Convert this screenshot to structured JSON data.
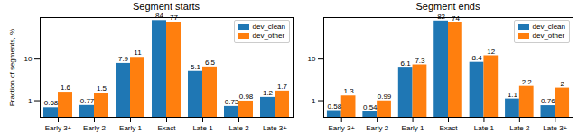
{
  "chart_data": [
    {
      "type": "bar",
      "title": "Segment starts",
      "ylabel": "Fraction of segments, %",
      "categories": [
        "Early 3+",
        "Early 2",
        "Early 1",
        "Exact",
        "Late 1",
        "Late 2",
        "Late 3+"
      ],
      "series": [
        {
          "name": "dev_clean",
          "color": "#1f77b4",
          "values": [
            0.68,
            0.77,
            7.9,
            84,
            5.1,
            0.73,
            1.2
          ]
        },
        {
          "name": "dev_other",
          "color": "#ff7f0e",
          "values": [
            1.6,
            1.5,
            11,
            77,
            6.5,
            0.98,
            1.7
          ]
        }
      ],
      "log": "y",
      "ylim": [
        0.4,
        99
      ],
      "yticks": [
        1,
        10
      ],
      "grid": false,
      "legend": "upper right",
      "data_labels": true
    },
    {
      "type": "bar",
      "title": "Segment ends",
      "categories": [
        "Early 3+",
        "Early 2",
        "Early 1",
        "Exact",
        "Late 1",
        "Late 2",
        "Late 3+"
      ],
      "series": [
        {
          "name": "dev_clean",
          "color": "#1f77b4",
          "values": [
            0.58,
            0.54,
            6.1,
            82,
            8.4,
            1.1,
            0.76
          ]
        },
        {
          "name": "dev_other",
          "color": "#ff7f0e",
          "values": [
            1.3,
            0.99,
            7.3,
            74,
            12,
            2.2,
            2
          ]
        }
      ],
      "log": "y",
      "ylim": [
        0.4,
        99
      ],
      "yticks": [
        1,
        10
      ],
      "grid": false,
      "legend": "upper right",
      "data_labels": true
    }
  ]
}
